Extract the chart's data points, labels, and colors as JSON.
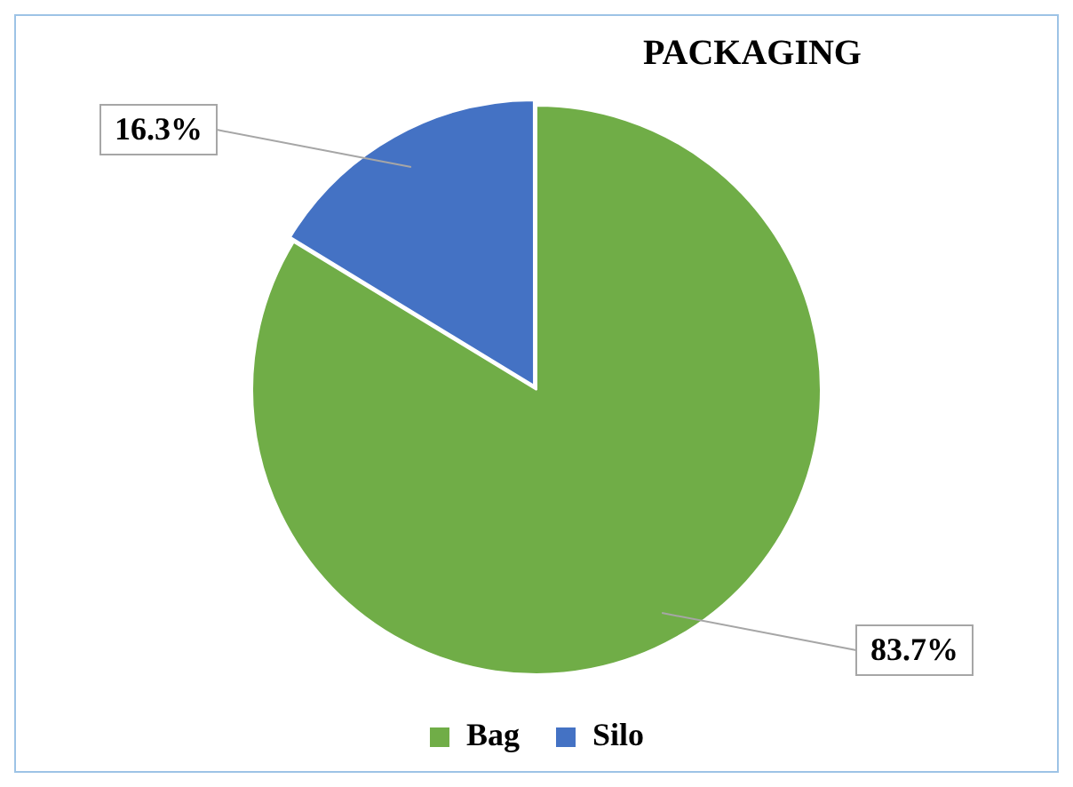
{
  "chart_data": {
    "type": "pie",
    "title": "PACKAGING",
    "categories": [
      "Bag",
      "Silo"
    ],
    "values": [
      83.7,
      16.3
    ],
    "colors": [
      "#70ad47",
      "#4472c4"
    ],
    "value_labels": [
      "83.7%",
      "16.3%"
    ],
    "legend": "bottom"
  }
}
